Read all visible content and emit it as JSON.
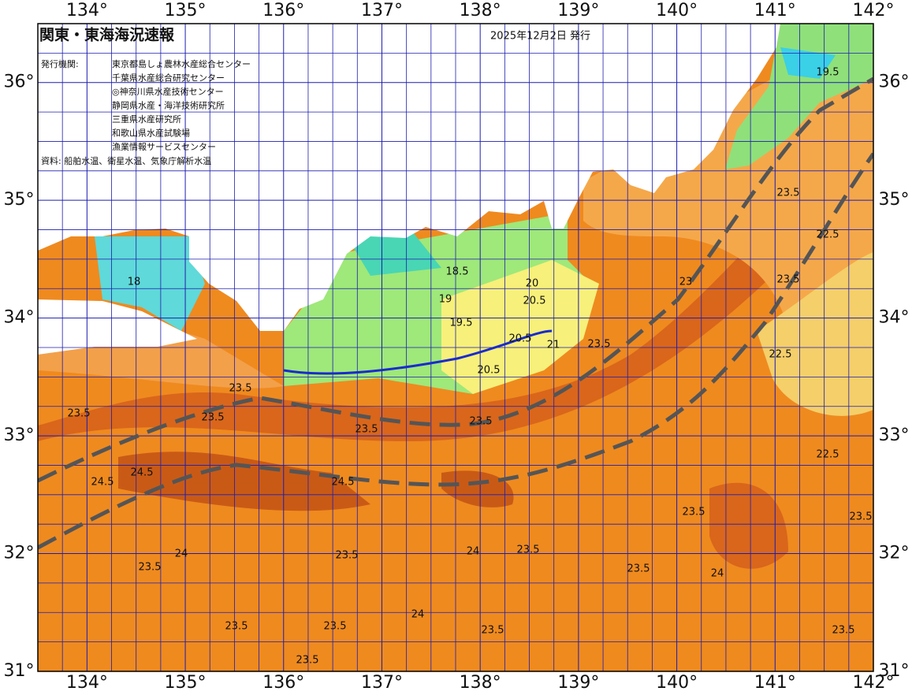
{
  "header": {
    "title": "関東・東海海況速報",
    "issued": "2025年12月2日 発行",
    "agencies_label": "発行機関:",
    "agencies": [
      "東京都島しょ農林水産総合センター",
      "千葉県水産総合研究センター",
      "◎神奈川県水産技術センター",
      "静岡県水産・海洋技術研究所",
      "三重県水産研究所",
      "和歌山県水産試験場",
      "漁業情報サービスセンター"
    ],
    "source": "資料: 船舶水温、衛星水温、気象庁解析水温"
  },
  "map": {
    "xlim": [
      133.5,
      142
    ],
    "ylim": [
      31,
      36.5
    ],
    "xticks": [
      {
        "value": 134,
        "label": "134°"
      },
      {
        "value": 135,
        "label": "135°"
      },
      {
        "value": 136,
        "label": "136°"
      },
      {
        "value": 137,
        "label": "137°"
      },
      {
        "value": 138,
        "label": "138°"
      },
      {
        "value": 139,
        "label": "139°"
      },
      {
        "value": 140,
        "label": "140°"
      },
      {
        "value": 141,
        "label": "141°"
      },
      {
        "value": 142,
        "label": "142°"
      }
    ],
    "yticks": [
      {
        "value": 31,
        "label": "31°"
      },
      {
        "value": 32,
        "label": "32°"
      },
      {
        "value": 33,
        "label": "33°"
      },
      {
        "value": 34,
        "label": "34°"
      },
      {
        "value": 35,
        "label": "35°"
      },
      {
        "value": 36,
        "label": "36°"
      }
    ],
    "grid": true,
    "contour_labels": [
      "23.5",
      "24.5",
      "24.5",
      "23.5",
      "23.5",
      "23.5",
      "24.5",
      "23.5",
      "24",
      "23.5",
      "23.5",
      "23.5",
      "22.5",
      "22.5",
      "23.5",
      "23",
      "24",
      "23.5",
      "23.5",
      "24",
      "23.5",
      "23.5",
      "24",
      "23.5",
      "19.5",
      "19",
      "18.5",
      "20.5",
      "20",
      "20.5",
      "20.5",
      "21",
      "19.5",
      "23.5",
      "18",
      "23.5",
      "23.5",
      "22.5",
      "23.5",
      "23.5"
    ]
  }
}
